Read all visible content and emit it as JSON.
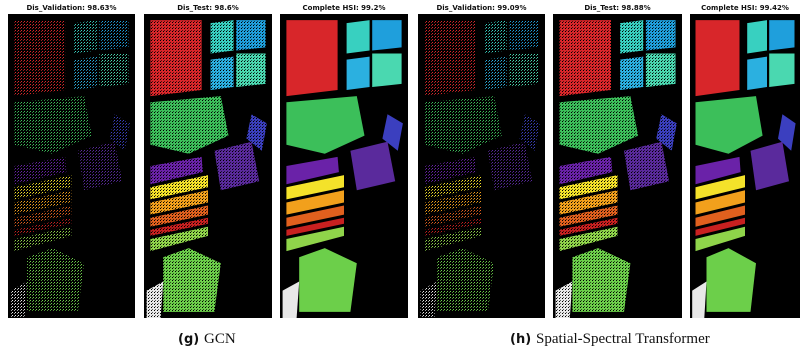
{
  "panels": [
    {
      "title": "Dis_Validation: 98.63%"
    },
    {
      "title": "Dis_Test: 98.6%"
    },
    {
      "title": "Complete HSI: 99.2%"
    },
    {
      "title": "Dis_Validation: 99.09%"
    },
    {
      "title": "Dis_Test: 98.88%"
    },
    {
      "title": "Complete HSI: 99.42%"
    }
  ],
  "captions": [
    {
      "label": "(g)",
      "text": "GCN"
    },
    {
      "label": "(h)",
      "text": "Spatial-Spectral Transformer"
    }
  ]
}
